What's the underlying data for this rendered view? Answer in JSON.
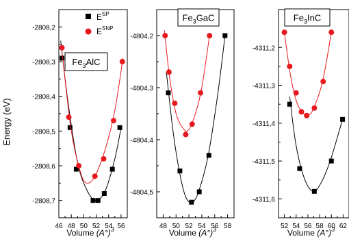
{
  "figure": {
    "ylabel": "Energy (eV)",
    "legend": {
      "sp_base": "E",
      "sp_sup": "SP",
      "snp_base": "E",
      "snp_sup": "SNP"
    }
  },
  "chart_data": [
    {
      "type": "scatter",
      "compound": {
        "base": "Fe",
        "sub": "3",
        "rest": "AlC"
      },
      "xlabel": "Volume",
      "xunit": "(A°)",
      "xunit_exp": "3",
      "ylabel": "Energy (eV)",
      "xlim": [
        46,
        57
      ],
      "ylim": [
        -2808.75,
        -2808.15
      ],
      "xticks": [
        46,
        48,
        50,
        52,
        54,
        56
      ],
      "yticks": [
        -2808.2,
        -2808.3,
        -2808.4,
        -2808.5,
        -2808.6,
        -2808.7
      ],
      "yticklabels": [
        "-2808,2",
        "-2808,3",
        "-2808,4",
        "-2808,5",
        "-2808,6",
        "-2808,7"
      ],
      "grid": false,
      "legend_position": "top-right",
      "series": [
        {
          "name": "E^SP",
          "marker": "square",
          "color": "#000000",
          "points": [
            [
              46.5,
              -2808.29
            ],
            [
              47.8,
              -2808.49
            ],
            [
              48.8,
              -2808.61
            ],
            [
              51.5,
              -2808.7
            ],
            [
              52.3,
              -2808.7
            ],
            [
              53.3,
              -2808.68
            ],
            [
              54.6,
              -2808.61
            ],
            [
              55.8,
              -2808.49
            ]
          ],
          "fit": [
            [
              46.3,
              -2808.24
            ],
            [
              47.5,
              -2808.42
            ],
            [
              49.0,
              -2808.59
            ],
            [
              50.5,
              -2808.67
            ],
            [
              52.0,
              -2808.7
            ],
            [
              53.5,
              -2808.67
            ],
            [
              55.0,
              -2808.58
            ],
            [
              56.0,
              -2808.49
            ]
          ]
        },
        {
          "name": "E^SNP",
          "marker": "circle",
          "color": "#e8191e",
          "points": [
            [
              46.5,
              -2808.26
            ],
            [
              47.6,
              -2808.46
            ],
            [
              49.2,
              -2808.6
            ],
            [
              51.8,
              -2808.63
            ],
            [
              53.2,
              -2808.58
            ],
            [
              54.8,
              -2808.47
            ],
            [
              56.2,
              -2808.3
            ]
          ],
          "fit": [
            [
              46.5,
              -2808.27
            ],
            [
              48.0,
              -2808.5
            ],
            [
              49.5,
              -2808.62
            ],
            [
              50.5,
              -2808.65
            ],
            [
              51.8,
              -2808.63
            ],
            [
              53.5,
              -2808.55
            ],
            [
              55.0,
              -2808.44
            ],
            [
              56.3,
              -2808.29
            ]
          ]
        }
      ]
    },
    {
      "type": "scatter",
      "compound": {
        "base": "Fe",
        "sub": "3",
        "rest": "GaC"
      },
      "xlabel": "Volume",
      "xunit": "(A°)",
      "xunit_exp": "3",
      "ylim": [
        -4804.55,
        -4804.15
      ],
      "xlim": [
        47,
        59
      ],
      "xticks": [
        48,
        50,
        52,
        54,
        56,
        58
      ],
      "yticks": [
        -4804.2,
        -4804.3,
        -4804.4,
        -4804.5
      ],
      "yticklabels": [
        "-4804,2",
        "-4804,3",
        "-4804,4",
        "-4804,5"
      ],
      "grid": false,
      "series": [
        {
          "name": "E^SP",
          "marker": "square",
          "color": "#000000",
          "points": [
            [
              48.8,
              -4804.31
            ],
            [
              50.6,
              -4804.46
            ],
            [
              52.4,
              -4804.52
            ],
            [
              53.6,
              -4804.5
            ],
            [
              55.1,
              -4804.43
            ],
            [
              57.6,
              -4804.2
            ]
          ],
          "fit": [
            [
              48.5,
              -4804.27
            ],
            [
              49.5,
              -4804.38
            ],
            [
              50.5,
              -4804.46
            ],
            [
              51.5,
              -4804.51
            ],
            [
              52.5,
              -4804.52
            ],
            [
              53.5,
              -4804.5
            ],
            [
              55.0,
              -4804.43
            ],
            [
              56.5,
              -4804.31
            ],
            [
              57.6,
              -4804.2
            ]
          ]
        },
        {
          "name": "E^SNP",
          "marker": "circle",
          "color": "#e8191e",
          "points": [
            [
              48.3,
              -4804.2
            ],
            [
              48.9,
              -4804.27
            ],
            [
              49.8,
              -4804.33
            ],
            [
              51.5,
              -4804.39
            ],
            [
              52.5,
              -4804.37
            ],
            [
              53.8,
              -4804.31
            ],
            [
              55.2,
              -4804.2
            ]
          ],
          "fit": [
            [
              48.2,
              -4804.19
            ],
            [
              49.0,
              -4804.28
            ],
            [
              50.0,
              -4804.35
            ],
            [
              51.2,
              -4804.38
            ],
            [
              52.0,
              -4804.38
            ],
            [
              53.0,
              -4804.35
            ],
            [
              54.0,
              -4804.3
            ],
            [
              55.2,
              -4804.2
            ]
          ]
        }
      ]
    },
    {
      "type": "scatter",
      "compound": {
        "base": "Fe",
        "sub": "3",
        "rest": "InC"
      },
      "xlabel": "Volume",
      "xunit": "(A°)",
      "xunit_exp": "3",
      "ylim": [
        -4311.65,
        -4311.1
      ],
      "xlim": [
        51,
        63
      ],
      "xticks": [
        52,
        54,
        56,
        58,
        60,
        62
      ],
      "yticks": [
        -4311.2,
        -4311.3,
        -4311.4,
        -4311.5,
        -4311.6
      ],
      "yticklabels": [
        "-4311,2",
        "-4311,3",
        "-4311,4",
        "-4311,5",
        "-4311,6"
      ],
      "grid": false,
      "series": [
        {
          "name": "E^SP",
          "marker": "square",
          "color": "#000000",
          "points": [
            [
              52.9,
              -4311.35
            ],
            [
              54.6,
              -4311.52
            ],
            [
              57.1,
              -4311.58
            ],
            [
              60.0,
              -4311.5
            ],
            [
              61.9,
              -4311.39
            ]
          ],
          "fit": [
            [
              52.9,
              -4311.33
            ],
            [
              54.0,
              -4311.46
            ],
            [
              55.5,
              -4311.55
            ],
            [
              57.0,
              -4311.58
            ],
            [
              58.5,
              -4311.55
            ],
            [
              60.0,
              -4311.49
            ],
            [
              61.9,
              -4311.39
            ]
          ]
        },
        {
          "name": "E^SNP",
          "marker": "circle",
          "color": "#e8191e",
          "points": [
            [
              52.0,
              -4311.16
            ],
            [
              52.9,
              -4311.25
            ],
            [
              54.0,
              -4311.32
            ],
            [
              54.9,
              -4311.37
            ],
            [
              55.8,
              -4311.38
            ],
            [
              57.1,
              -4311.36
            ],
            [
              58.6,
              -4311.29
            ],
            [
              60.0,
              -4311.16
            ]
          ],
          "fit": [
            [
              52.0,
              -4311.16
            ],
            [
              53.0,
              -4311.27
            ],
            [
              54.0,
              -4311.34
            ],
            [
              55.0,
              -4311.37
            ],
            [
              56.0,
              -4311.38
            ],
            [
              57.0,
              -4311.36
            ],
            [
              58.5,
              -4311.29
            ],
            [
              60.0,
              -4311.16
            ]
          ]
        }
      ]
    }
  ]
}
